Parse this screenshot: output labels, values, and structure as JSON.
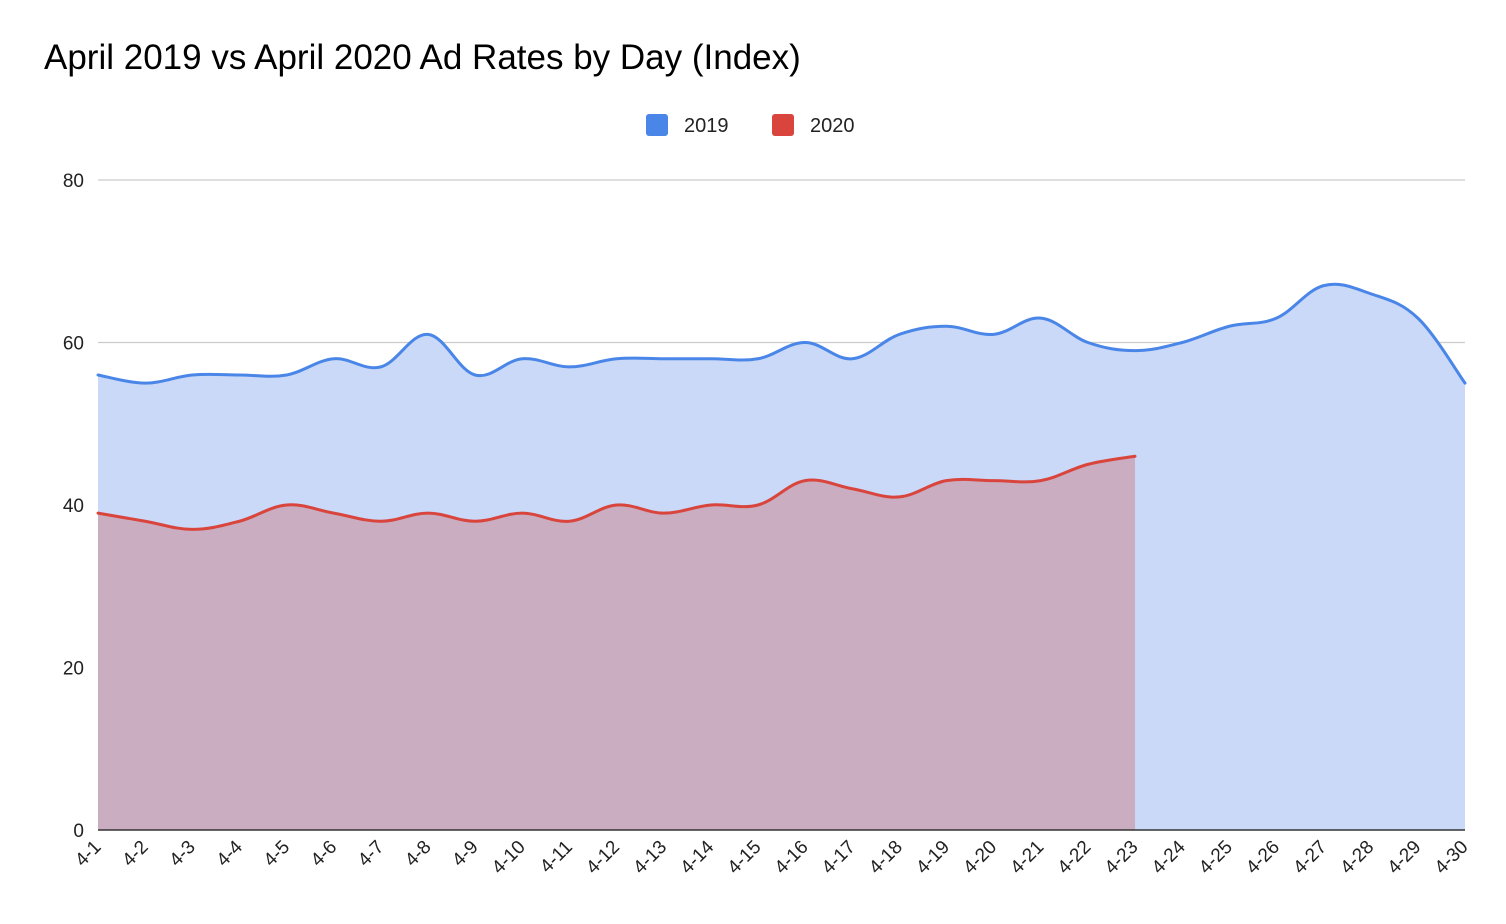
{
  "chart_data": {
    "type": "area",
    "title": "April 2019 vs April 2020 Ad Rates by Day (Index)",
    "xlabel": "",
    "ylabel": "",
    "categories": [
      "4-1",
      "4-2",
      "4-3",
      "4-4",
      "4-5",
      "4-6",
      "4-7",
      "4-8",
      "4-9",
      "4-10",
      "4-11",
      "4-12",
      "4-13",
      "4-14",
      "4-15",
      "4-16",
      "4-17",
      "4-18",
      "4-19",
      "4-20",
      "4-21",
      "4-22",
      "4-23",
      "4-24",
      "4-25",
      "4-26",
      "4-27",
      "4-28",
      "4-29",
      "4-30"
    ],
    "series": [
      {
        "name": "2019",
        "color": "#4a86e8",
        "fill": "#c9d9f7",
        "values": [
          56,
          55,
          56,
          56,
          56,
          58,
          57,
          61,
          56,
          58,
          57,
          58,
          58,
          58,
          58,
          60,
          58,
          61,
          62,
          61,
          63,
          60,
          59,
          60,
          62,
          63,
          67,
          66,
          63,
          55
        ]
      },
      {
        "name": "2020",
        "color": "#d9453c",
        "fill": "#caadc1",
        "values": [
          39,
          38,
          37,
          38,
          40,
          39,
          38,
          39,
          38,
          39,
          38,
          40,
          39,
          40,
          40,
          43,
          42,
          41,
          43,
          43,
          43,
          45,
          46,
          null,
          null,
          null,
          null,
          null,
          null,
          null
        ]
      }
    ],
    "yticks": [
      0,
      20,
      40,
      60,
      80
    ],
    "ylim": [
      0,
      80
    ],
    "grid": true,
    "legend": "top-center"
  }
}
